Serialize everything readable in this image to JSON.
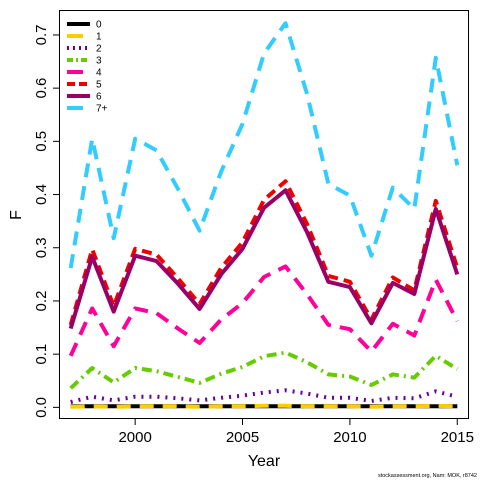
{
  "chart_data": {
    "type": "line",
    "title": "",
    "xlabel": "Year",
    "ylabel": "F",
    "xlim": [
      1996.5,
      2015.5
    ],
    "ylim": [
      -0.02,
      0.745
    ],
    "x_ticks": [
      2000,
      2005,
      2010,
      2015
    ],
    "y_ticks": [
      0.0,
      0.1,
      0.2,
      0.3,
      0.4,
      0.5,
      0.6,
      0.7
    ],
    "x_tick_labels": [
      "2000",
      "2005",
      "2010",
      "2015"
    ],
    "y_tick_labels": [
      "0.0",
      "0.1",
      "0.2",
      "0.3",
      "0.4",
      "0.5",
      "0.6",
      "0.7"
    ],
    "grid": false,
    "legend_position": "top-left",
    "x": [
      1997,
      1998,
      1999,
      2000,
      2001,
      2002,
      2003,
      2004,
      2005,
      2006,
      2007,
      2008,
      2009,
      2010,
      2011,
      2012,
      2013,
      2014,
      2015
    ],
    "series": [
      {
        "name": "0",
        "color": "#000000",
        "dash": "solid",
        "values": [
          0.002,
          0.002,
          0.002,
          0.002,
          0.002,
          0.002,
          0.002,
          0.002,
          0.002,
          0.002,
          0.002,
          0.002,
          0.002,
          0.002,
          0.002,
          0.002,
          0.002,
          0.002,
          0.002
        ]
      },
      {
        "name": "1",
        "color": "#FFCC00",
        "dash": "long",
        "values": [
          0.001,
          0.002,
          0.001,
          0.002,
          0.002,
          0.002,
          0.001,
          0.002,
          0.002,
          0.003,
          0.003,
          0.002,
          0.002,
          0.002,
          0.001,
          0.002,
          0.002,
          0.003,
          0.002
        ]
      },
      {
        "name": "2",
        "color": "#660099",
        "dash": "dot",
        "values": [
          0.01,
          0.02,
          0.013,
          0.02,
          0.02,
          0.017,
          0.013,
          0.018,
          0.022,
          0.028,
          0.032,
          0.026,
          0.018,
          0.018,
          0.012,
          0.018,
          0.017,
          0.03,
          0.02
        ]
      },
      {
        "name": "3",
        "color": "#66CC00",
        "dash": "dash-dot",
        "values": [
          0.036,
          0.074,
          0.047,
          0.074,
          0.068,
          0.057,
          0.046,
          0.063,
          0.076,
          0.096,
          0.103,
          0.085,
          0.062,
          0.058,
          0.042,
          0.062,
          0.056,
          0.097,
          0.072
        ]
      },
      {
        "name": "4",
        "color": "#FF0099",
        "dash": "long",
        "values": [
          0.097,
          0.186,
          0.115,
          0.186,
          0.177,
          0.148,
          0.121,
          0.165,
          0.196,
          0.245,
          0.265,
          0.213,
          0.155,
          0.147,
          0.105,
          0.157,
          0.135,
          0.24,
          0.162
        ]
      },
      {
        "name": "5",
        "color": "#EE0000",
        "dash": "dashed",
        "values": [
          0.155,
          0.297,
          0.19,
          0.298,
          0.287,
          0.242,
          0.194,
          0.262,
          0.31,
          0.39,
          0.425,
          0.345,
          0.247,
          0.236,
          0.165,
          0.244,
          0.22,
          0.388,
          0.262
        ]
      },
      {
        "name": "6",
        "color": "#990066",
        "dash": "solid",
        "values": [
          0.148,
          0.283,
          0.18,
          0.285,
          0.275,
          0.232,
          0.185,
          0.25,
          0.298,
          0.375,
          0.408,
          0.33,
          0.236,
          0.226,
          0.158,
          0.234,
          0.213,
          0.373,
          0.25
        ]
      },
      {
        "name": "7+",
        "color": "#33CCFF",
        "dash": "long",
        "values": [
          0.262,
          0.505,
          0.318,
          0.505,
          0.483,
          0.41,
          0.332,
          0.443,
          0.533,
          0.665,
          0.722,
          0.59,
          0.42,
          0.398,
          0.285,
          0.413,
          0.373,
          0.657,
          0.455
        ]
      }
    ]
  },
  "footnote": "stockassessment.org, Nam: MOK, r8742"
}
